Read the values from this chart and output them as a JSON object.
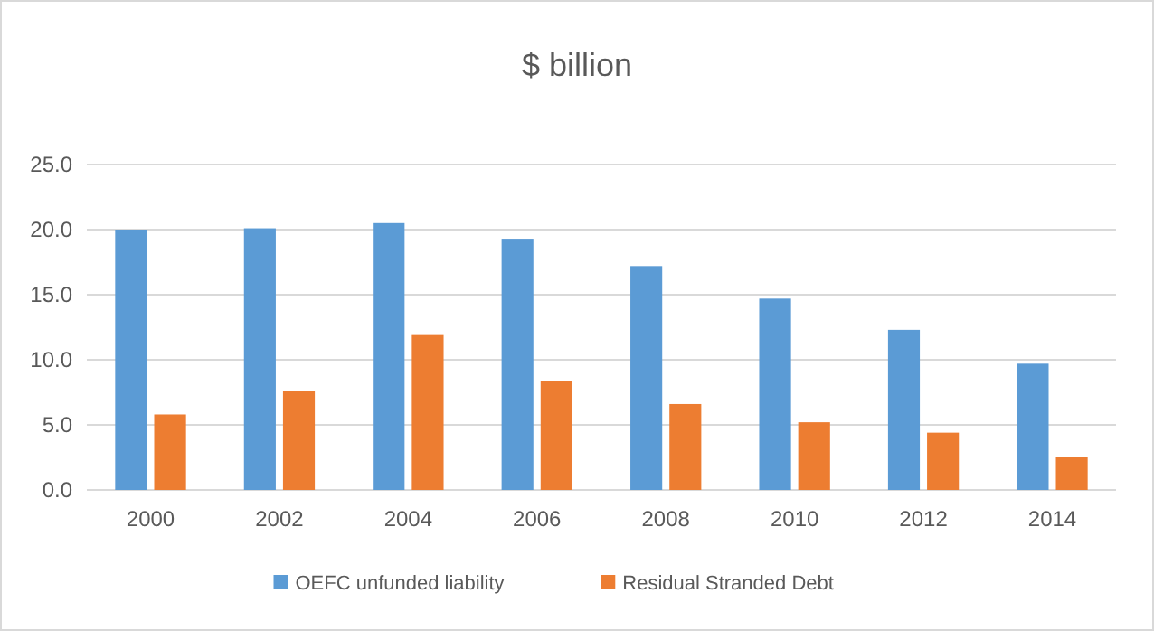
{
  "chart_data": {
    "type": "bar",
    "title": "$ billion",
    "categories": [
      "2000",
      "2002",
      "2004",
      "2006",
      "2008",
      "2010",
      "2012",
      "2014"
    ],
    "series": [
      {
        "name": "OEFC unfunded liability",
        "color": "#5b9bd5",
        "values": [
          20.0,
          20.1,
          20.5,
          19.3,
          17.2,
          14.7,
          12.3,
          9.7
        ]
      },
      {
        "name": "Residual Stranded Debt",
        "color": "#ed7d31",
        "values": [
          5.8,
          7.6,
          11.9,
          8.4,
          6.6,
          5.2,
          4.4,
          2.5
        ]
      }
    ],
    "ylim": [
      0,
      25
    ],
    "yticks": [
      {
        "value": 0,
        "label": "0.0"
      },
      {
        "value": 5,
        "label": "5.0"
      },
      {
        "value": 10,
        "label": "10.0"
      },
      {
        "value": 15,
        "label": "15.0"
      },
      {
        "value": 20,
        "label": "20.0"
      },
      {
        "value": 25,
        "label": "25.0"
      }
    ],
    "grid": "y",
    "legend": "bottom"
  }
}
